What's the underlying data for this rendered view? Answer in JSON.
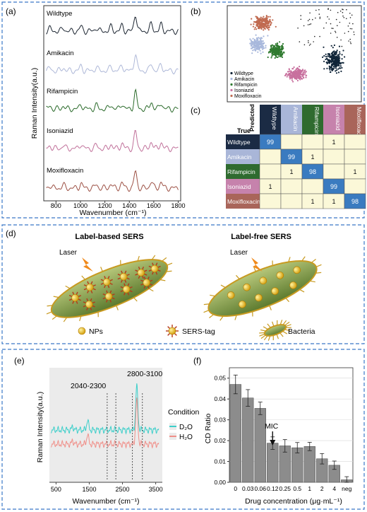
{
  "panels": {
    "a": {
      "letter": "(a)",
      "ylabel": "Raman Intensity(a.u.)",
      "xlabel": "Wavenumber (cm⁻¹)",
      "xticks": [
        "800",
        "1000",
        "1200",
        "1400",
        "1600",
        "1800"
      ],
      "spectra": [
        {
          "label": "Wildtype",
          "color": "#1b2430"
        },
        {
          "label": "Amikacin",
          "color": "#aeb8d8"
        },
        {
          "label": "Rifampicin",
          "color": "#2a6a2a"
        },
        {
          "label": "Isoniazid",
          "color": "#c0709a"
        },
        {
          "label": "Moxifloxacin",
          "color": "#9c5044"
        }
      ]
    },
    "b": {
      "letter": "(b)",
      "legend": [
        "Wildtype",
        "Amikacin",
        "Rifampicin",
        "Isoniazid",
        "Moxifloxacin"
      ]
    },
    "c": {
      "letter": "(c)",
      "corner_true": "True",
      "corner_predicted": "Predicted",
      "columns": [
        "Wildtype",
        "Amikacin",
        "Rifampicin",
        "Isoniazid",
        "Moxifloxacin"
      ],
      "rows": [
        {
          "label": "Wildtype",
          "color": "#1b2b44",
          "cells": [
            "99",
            "",
            "",
            "1",
            ""
          ]
        },
        {
          "label": "Amikacin",
          "color": "#a9b6d8",
          "cells": [
            "",
            "99",
            "1",
            "",
            ""
          ]
        },
        {
          "label": "Rifampicin",
          "color": "#2f6b2f",
          "cells": [
            "",
            "1",
            "98",
            "",
            "1"
          ]
        },
        {
          "label": "Isoniazid",
          "color": "#c682ac",
          "cells": [
            "1",
            "",
            "",
            "99",
            ""
          ]
        },
        {
          "label": "Moxifloxacin",
          "color": "#a9655a",
          "cells": [
            "",
            "",
            "1",
            "1",
            "98"
          ]
        }
      ]
    },
    "d": {
      "letter": "(d)",
      "left_title": "Label-based SERS",
      "right_title": "Label-free SERS",
      "laser_label": "Laser",
      "legend": {
        "nps": "NPs",
        "tag": "SERS-tag",
        "bacteria": "Bacteria"
      }
    },
    "e": {
      "letter": "(e)",
      "ylabel": "Raman Intensity(a.u.)",
      "xlabel": "Wavenumber (cm⁻¹)",
      "xticks": [
        "500",
        "1500",
        "2500",
        "3500"
      ],
      "annotations": [
        "2040-2300",
        "2800-3100"
      ],
      "legend_title": "Condition",
      "legend_items": [
        {
          "label": "D₂O",
          "color": "#3ecfca"
        },
        {
          "label": "H₂O",
          "color": "#f0908a"
        }
      ]
    },
    "f": {
      "letter": "(f)",
      "ylabel": "CD Ratio",
      "xlabel": "Drug concentration (μg·mL⁻¹)",
      "annotation": "MIC",
      "chart_data": {
        "type": "bar",
        "categories": [
          "0",
          "0.03",
          "0.06",
          "0.12",
          "0.25",
          "0.5",
          "1",
          "2",
          "4",
          "neg"
        ],
        "values": [
          0.047,
          0.0405,
          0.0355,
          0.0188,
          0.0175,
          0.0166,
          0.0172,
          0.0113,
          0.0082,
          0.0012
        ],
        "errors": [
          0.0045,
          0.004,
          0.003,
          0.003,
          0.003,
          0.0025,
          0.002,
          0.0025,
          0.002,
          0.0015
        ],
        "yticks": [
          "0.00",
          "0.01",
          "0.02",
          "0.03",
          "0.04",
          "0.05"
        ],
        "ylim": [
          0,
          0.055
        ]
      }
    }
  }
}
